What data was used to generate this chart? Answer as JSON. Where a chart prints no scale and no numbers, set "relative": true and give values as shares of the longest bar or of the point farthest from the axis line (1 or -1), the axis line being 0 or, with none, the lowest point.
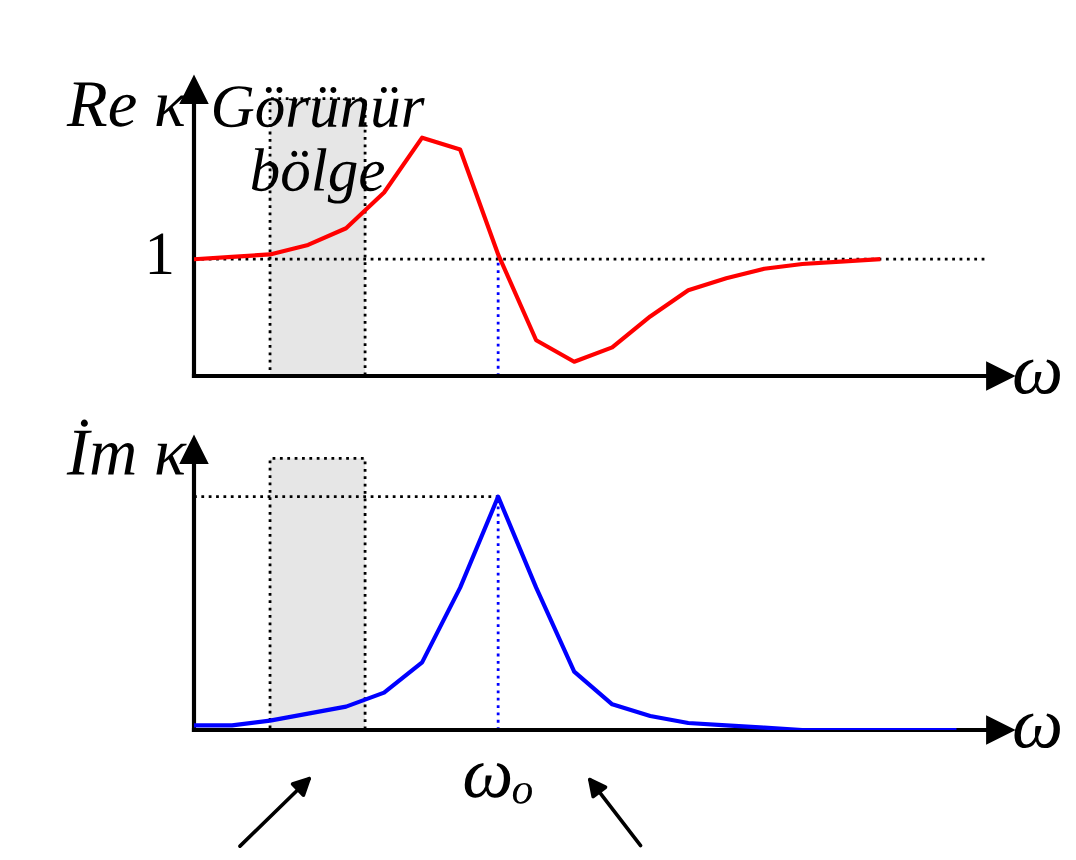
{
  "chart_data": [
    {
      "type": "line",
      "relative": true,
      "ylabel": "Re κ",
      "xlabel": "ω",
      "categories": [
        null,
        null,
        null,
        null,
        null,
        null,
        null,
        null,
        null,
        null,
        null,
        null,
        null,
        null,
        null,
        null,
        null,
        null,
        null,
        null,
        null
      ],
      "series": [
        {
          "color": "#ff0000",
          "values": [
            0.49,
            0.5,
            0.51,
            0.55,
            0.62,
            0.77,
            1.0,
            0.95,
            0.51,
            0.15,
            0.06,
            0.12,
            0.25,
            0.36,
            0.41,
            0.45,
            0.47,
            0.48,
            0.49,
            null,
            null
          ]
        }
      ],
      "ref_lines": [
        {
          "axis": "y",
          "value": 0.49,
          "color": "#000000",
          "line_style": "dotted"
        }
      ],
      "annotations": [
        "1",
        "Görünür\nbölge"
      ],
      "grid": false,
      "legend": false,
      "marker": "none",
      "line_style": "solid"
    },
    {
      "type": "line",
      "relative": true,
      "ylabel": "İm κ",
      "xlabel": "ω",
      "categories": [
        null,
        null,
        null,
        null,
        null,
        null,
        null,
        null,
        null,
        null,
        null,
        null,
        null,
        null,
        null,
        null,
        null,
        null,
        null,
        null,
        null
      ],
      "series": [
        {
          "color": "#0000ff",
          "values": [
            0.02,
            0.02,
            0.04,
            0.07,
            0.1,
            0.16,
            0.29,
            0.61,
            1.0,
            0.61,
            0.25,
            0.11,
            0.06,
            0.03,
            0.02,
            0.01,
            0,
            0,
            0,
            0,
            0
          ]
        }
      ],
      "annotations": [
        "ωₒ"
      ],
      "grid": false,
      "legend": false,
      "marker": "none",
      "line_style": "solid"
    }
  ]
}
